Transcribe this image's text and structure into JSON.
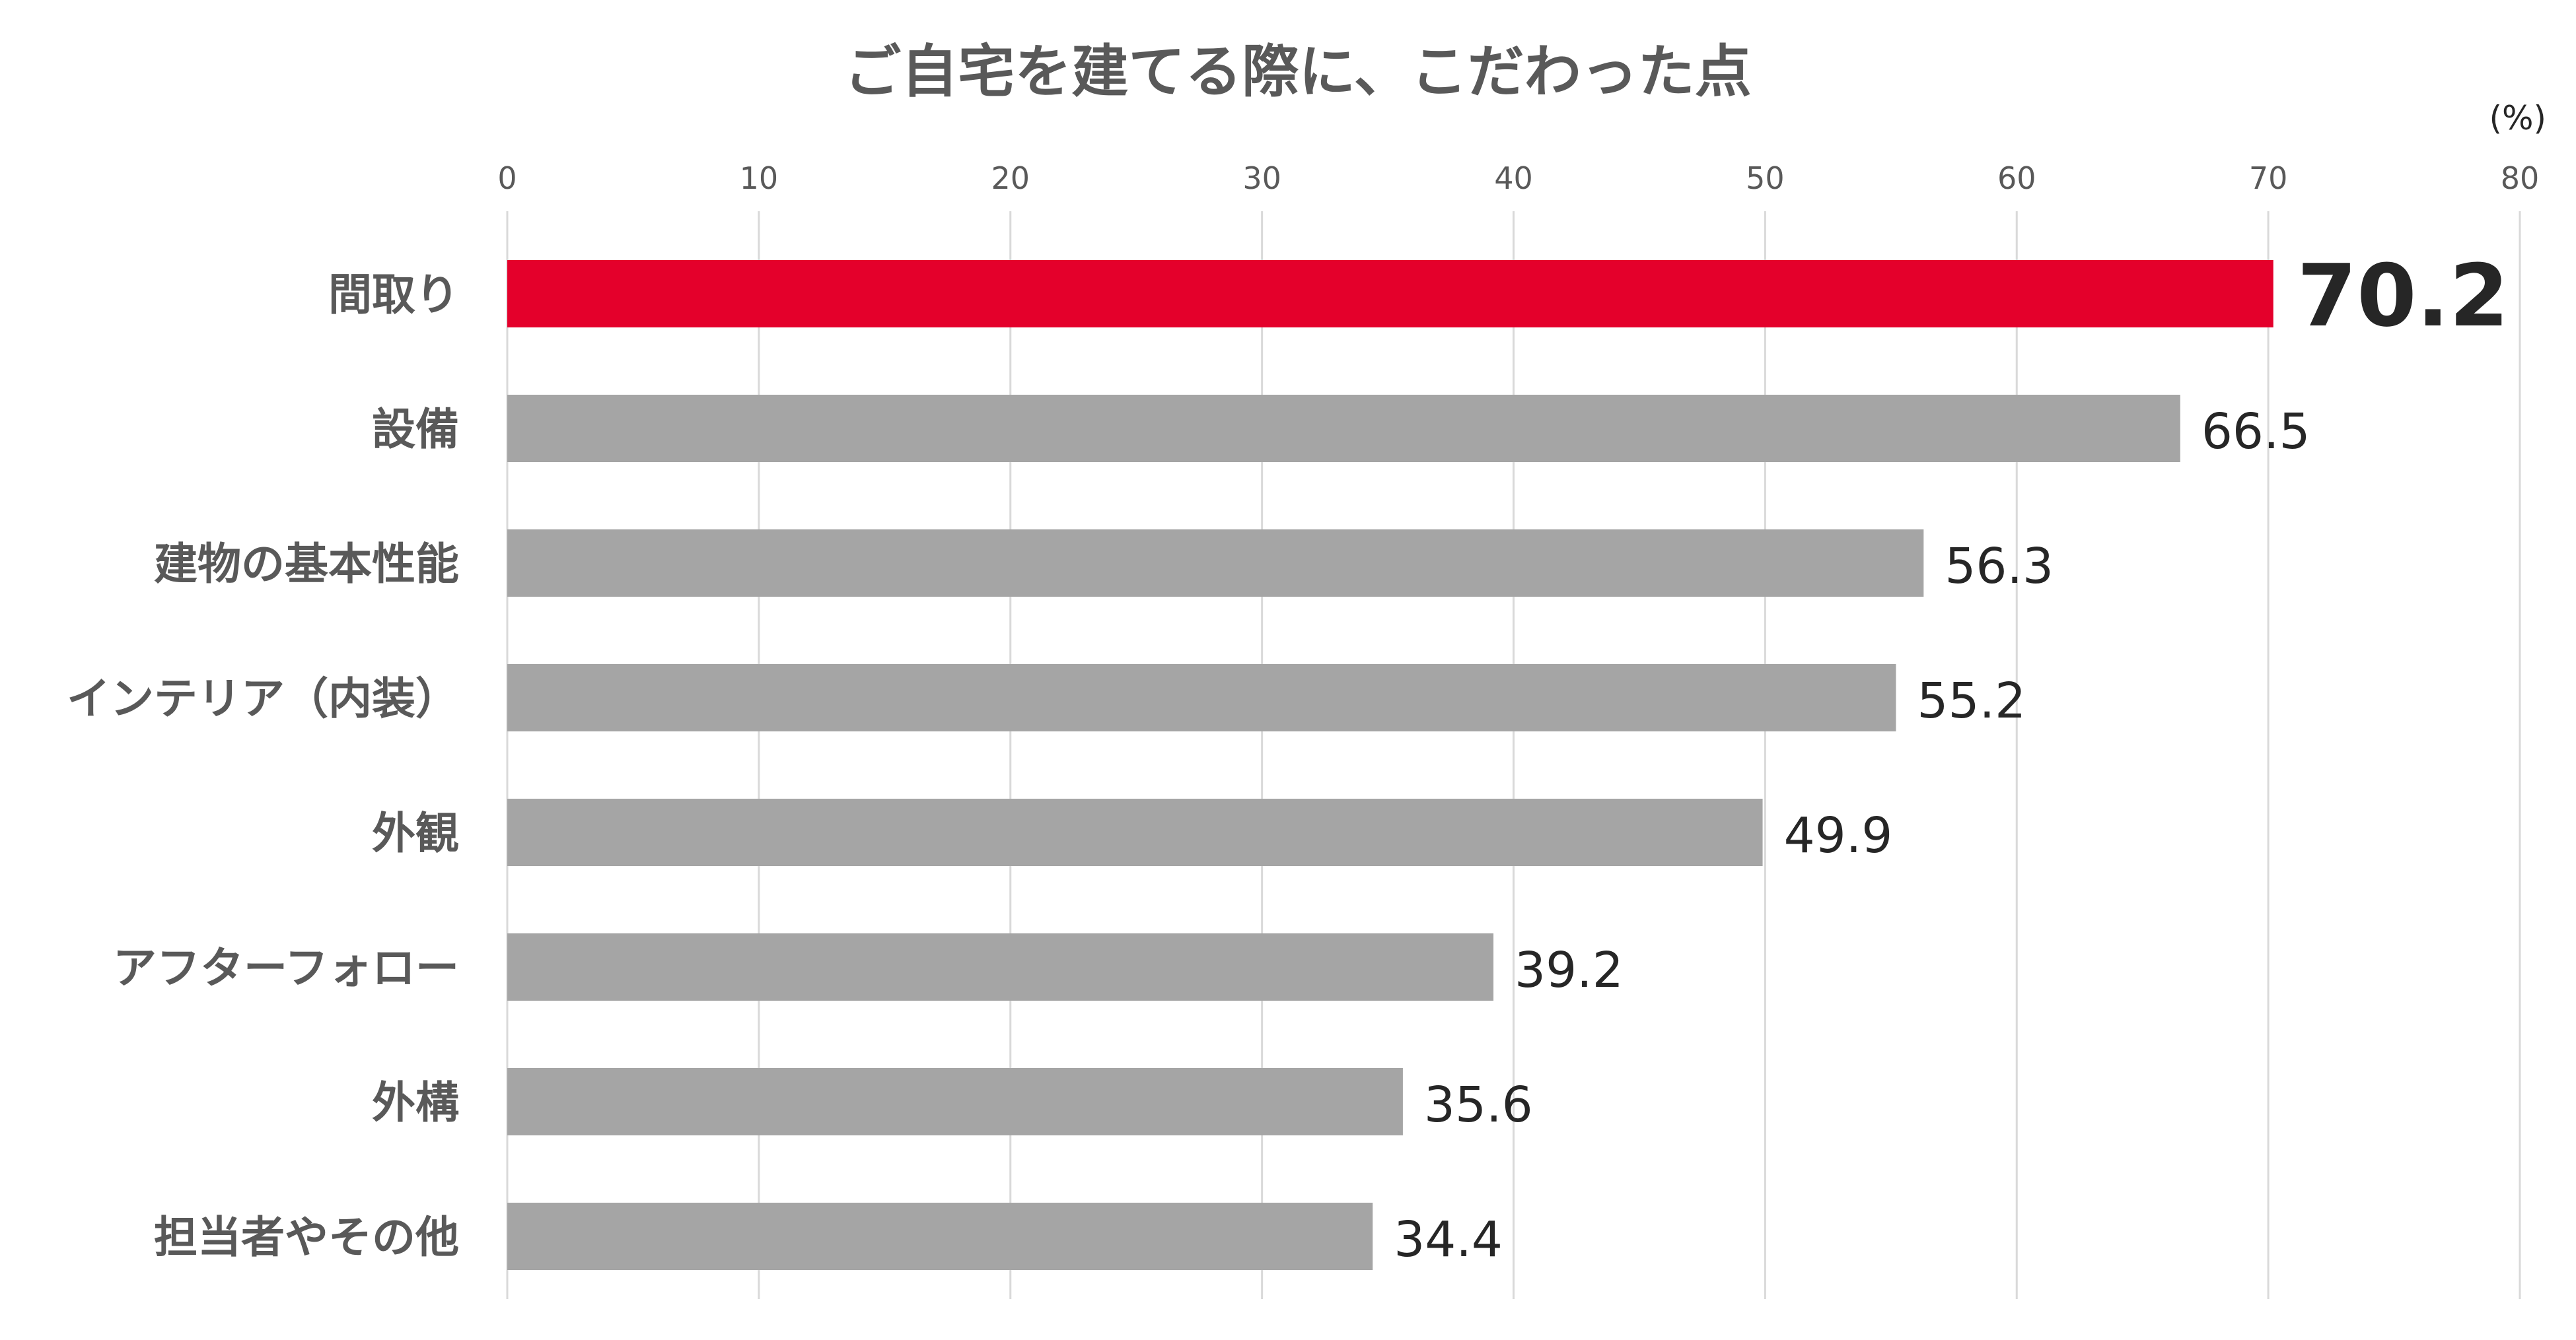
{
  "chart_data": {
    "type": "bar",
    "orientation": "horizontal",
    "title": "ご自宅を建てる際に、こだわった点",
    "unit_label": "(%)",
    "xlim": [
      0,
      80
    ],
    "x_ticks": [
      0,
      10,
      20,
      30,
      40,
      50,
      60,
      70,
      80
    ],
    "x_axis_position": "top",
    "grid": true,
    "categories": [
      "間取り",
      "設備",
      "建物の基本性能",
      "インテリア（内装）",
      "外観",
      "アフターフォロー",
      "外構",
      "担当者やその他"
    ],
    "values": [
      70.2,
      66.5,
      56.3,
      55.2,
      49.9,
      39.2,
      35.6,
      34.4
    ],
    "value_labels": [
      "70.2",
      "66.5",
      "56.3",
      "55.2",
      "49.9",
      "39.2",
      "35.6",
      "34.4"
    ],
    "highlight_index": 0,
    "colors": {
      "highlight": "#E4002B",
      "bar": "#A5A5A5",
      "grid": "#D9D9D9",
      "title": "#595959",
      "label": "#595959",
      "value": "#262626"
    }
  }
}
